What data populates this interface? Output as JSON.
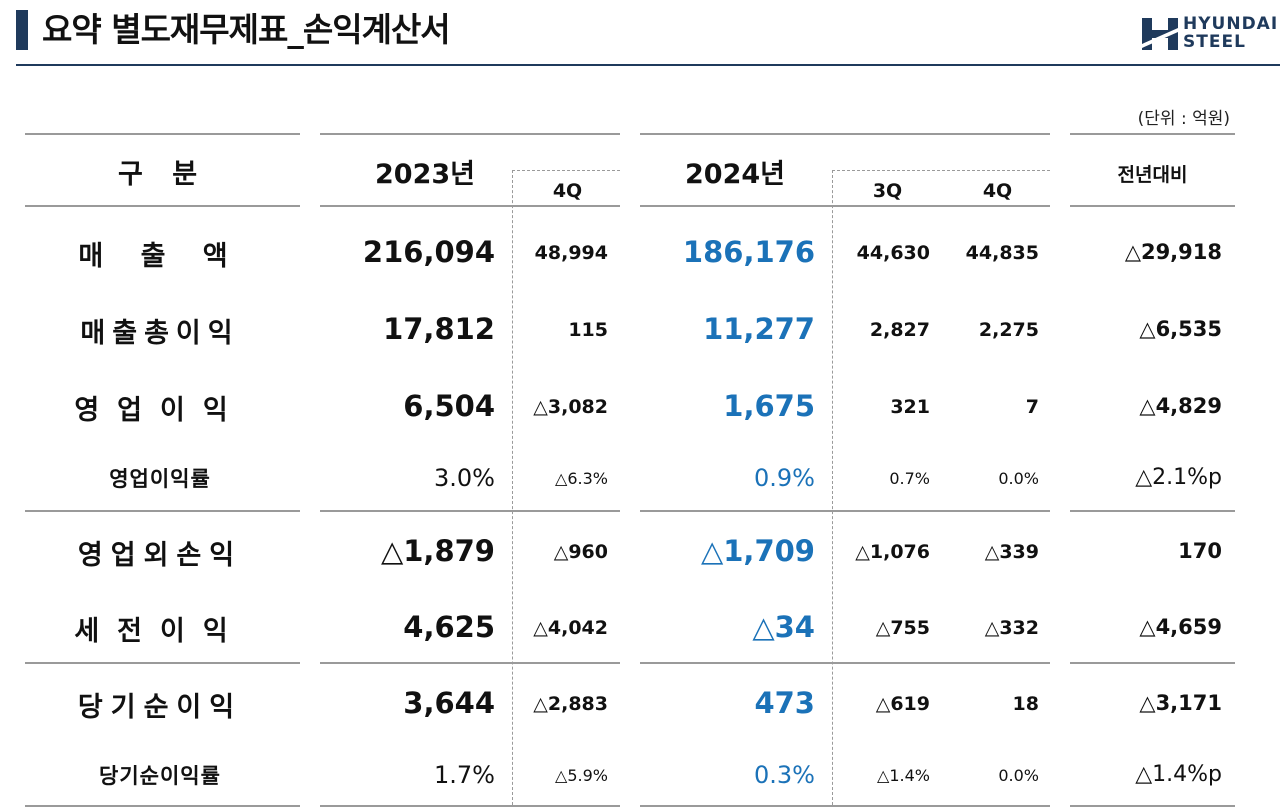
{
  "header": {
    "title": "요약 별도재무제표_손익계산서",
    "logo_line1": "HYUNDAI",
    "logo_line2": "STEEL",
    "unit": "(단위 : 억원)"
  },
  "colors": {
    "accent": "#1f3a5c",
    "highlight_blue": "#1b72b8",
    "rule_gray": "#9a9a9a"
  },
  "table": {
    "headers": {
      "category": "구 분",
      "y2023": "2023년",
      "y2023_q4": "4Q",
      "y2024": "2024년",
      "y2024_q3": "3Q",
      "y2024_q4": "4Q",
      "yoy": "전년대비"
    },
    "rows": [
      {
        "label": "매 출 액",
        "y2023": "216,094",
        "y2023_q4": "48,994",
        "y2024": "186,176",
        "y2024_q3": "44,630",
        "y2024_q4": "44,835",
        "yoy": "△29,918"
      },
      {
        "label": "매출총이익",
        "y2023": "17,812",
        "y2023_q4": "115",
        "y2024": "11,277",
        "y2024_q3": "2,827",
        "y2024_q4": "2,275",
        "yoy": "△6,535"
      },
      {
        "label": "영업이익",
        "y2023": "6,504",
        "y2023_q4": "△3,082",
        "y2024": "1,675",
        "y2024_q3": "321",
        "y2024_q4": "7",
        "yoy": "△4,829"
      },
      {
        "label": "영업이익률",
        "y2023": "3.0%",
        "y2023_q4": "△6.3%",
        "y2024": "0.9%",
        "y2024_q3": "0.7%",
        "y2024_q4": "0.0%",
        "yoy": "△2.1%p"
      },
      {
        "label": "영업외손익",
        "y2023": "△1,879",
        "y2023_q4": "△960",
        "y2024": "△1,709",
        "y2024_q3": "△1,076",
        "y2024_q4": "△339",
        "yoy": "170"
      },
      {
        "label": "세전이익",
        "y2023": "4,625",
        "y2023_q4": "△4,042",
        "y2024": "△34",
        "y2024_q3": "△755",
        "y2024_q4": "△332",
        "yoy": "△4,659"
      },
      {
        "label": "당기순이익",
        "y2023": "3,644",
        "y2023_q4": "△2,883",
        "y2024": "473",
        "y2024_q3": "△619",
        "y2024_q4": "18",
        "yoy": "△3,171"
      },
      {
        "label": "당기순이익률",
        "y2023": "1.7%",
        "y2023_q4": "△5.9%",
        "y2024": "0.3%",
        "y2024_q3": "△1.4%",
        "y2024_q4": "0.0%",
        "yoy": "△1.4%p"
      }
    ]
  }
}
